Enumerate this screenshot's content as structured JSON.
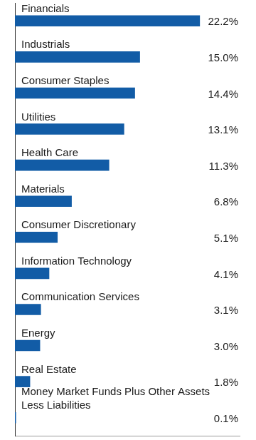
{
  "chart_data": {
    "type": "bar",
    "orientation": "horizontal",
    "categories": [
      "Financials",
      "Industrials",
      "Consumer Staples",
      "Utilities",
      "Health Care",
      "Materials",
      "Consumer Discretionary",
      "Information Technology",
      "Communication Services",
      "Energy",
      "Real Estate",
      "Money Market Funds Plus Other Assets Less Liabilities"
    ],
    "values": [
      22.2,
      15.0,
      14.4,
      13.1,
      11.3,
      6.8,
      5.1,
      4.1,
      3.1,
      3.0,
      1.8,
      0.1
    ],
    "value_labels": [
      "22.2%",
      "15.0%",
      "14.4%",
      "13.1%",
      "11.3%",
      "6.8%",
      "5.1%",
      "4.1%",
      "3.1%",
      "3.0%",
      "1.8%",
      "0.1%"
    ],
    "color": "#125ca6",
    "xlim": [
      0,
      27
    ],
    "grid": false,
    "tick_labels": false,
    "data_labels": true
  }
}
